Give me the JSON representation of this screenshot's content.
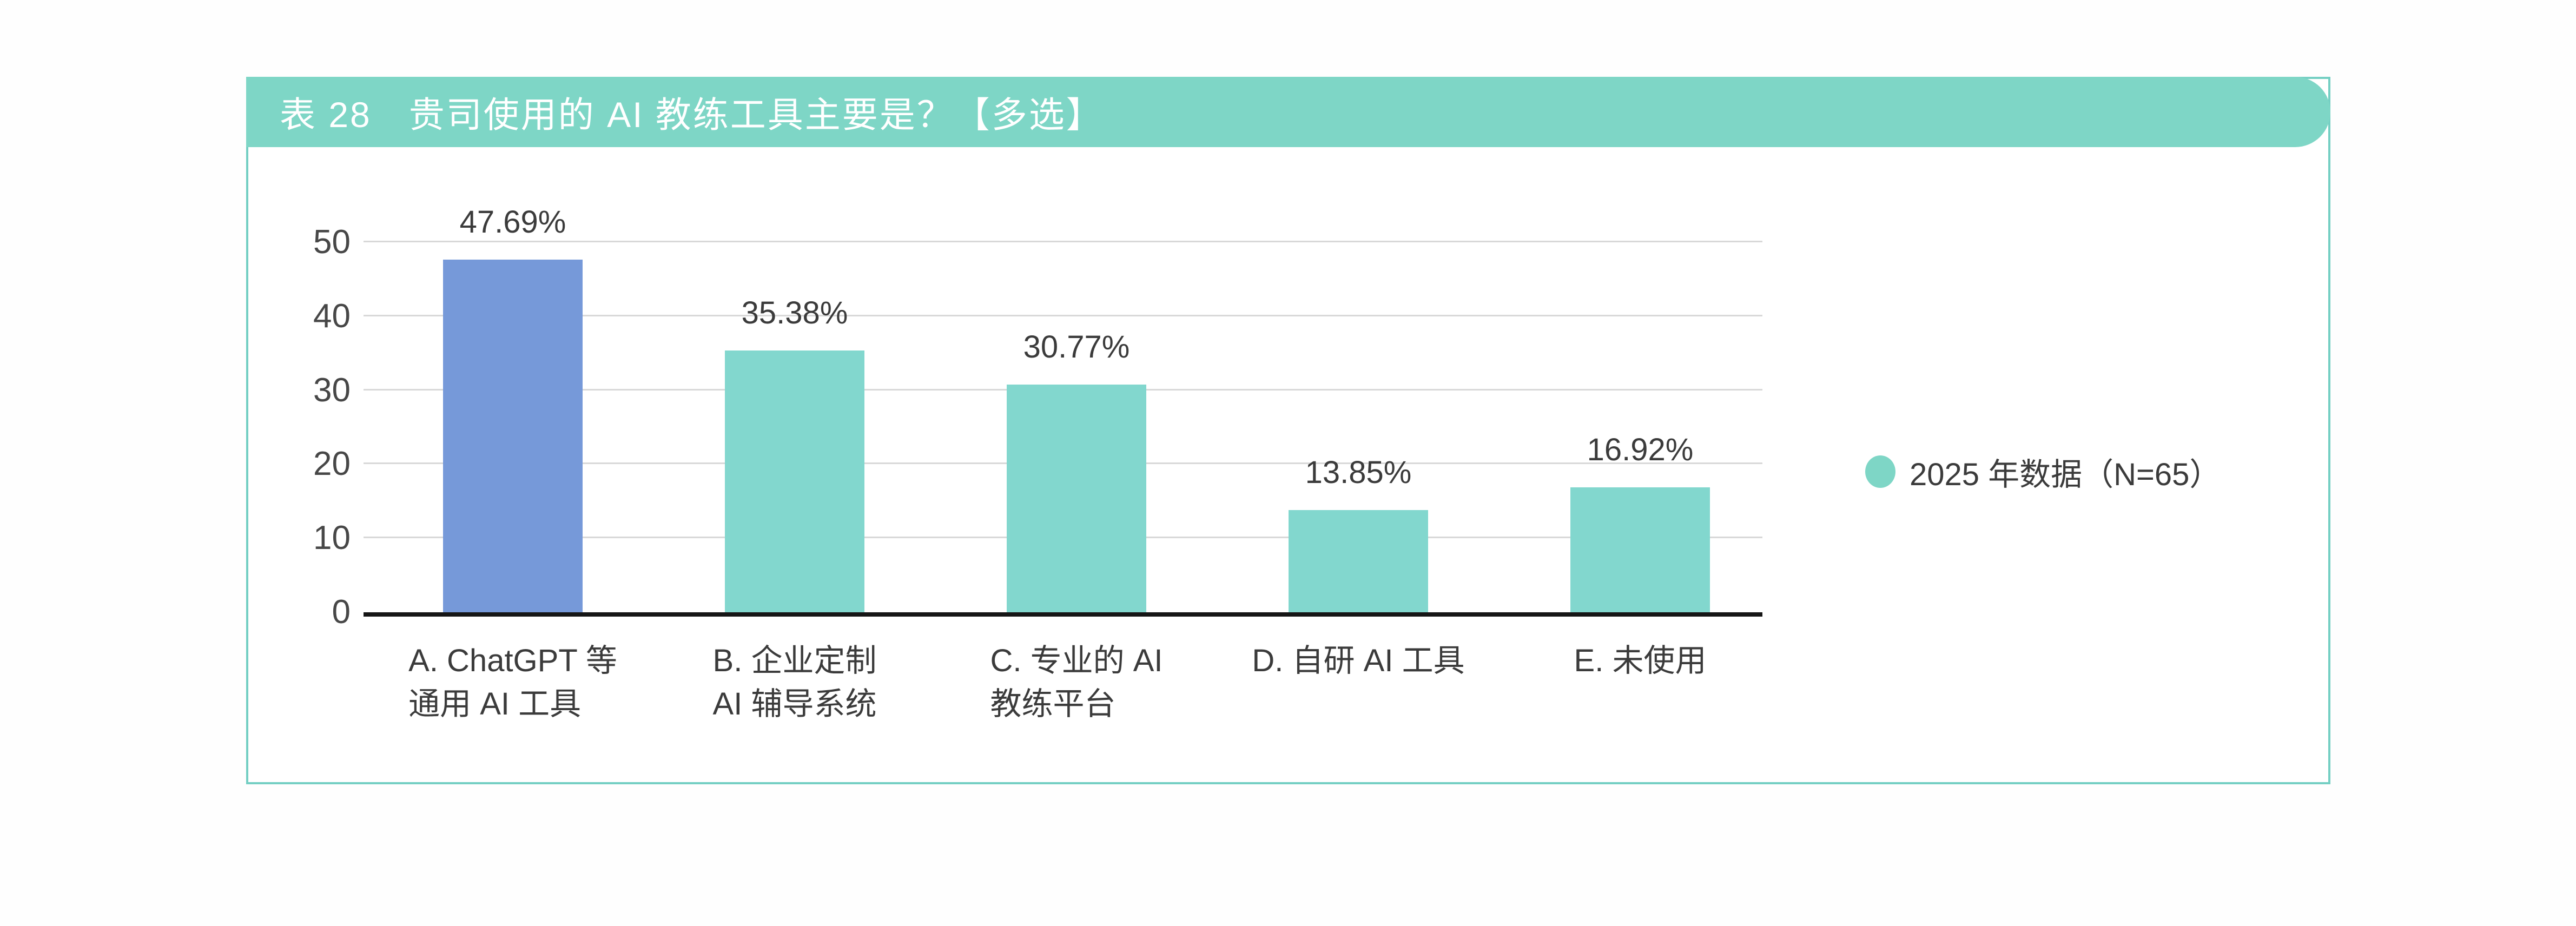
{
  "header": {
    "title": "表 28　贵司使用的 AI 教练工具主要是？【多选】"
  },
  "legend": {
    "label": "2025 年数据（N=65）"
  },
  "colors": {
    "header_bg": "#7ed6c6",
    "header_text": "#ffffff",
    "card_border": "#74cfc3",
    "accent_teal": "#82d7ce",
    "accent_blue": "#7699d9",
    "grid_line": "#d8d8d8",
    "axis_line": "#161616",
    "text": "#3b3b3b"
  },
  "chart_data": {
    "type": "bar",
    "title": "表 28 贵司使用的 AI 教练工具主要是？【多选】",
    "categories": [
      "A. ChatGPT 等\n通用 AI 工具",
      "B. 企业定制\nAI 辅导系统",
      "C. 专业的 AI\n教练平台",
      "D. 自研 AI 工具",
      "E. 未使用"
    ],
    "values": [
      47.69,
      35.38,
      30.77,
      13.85,
      16.92
    ],
    "value_labels": [
      "47.69%",
      "35.38%",
      "30.77%",
      "13.85%",
      "16.92%"
    ],
    "bar_colors": [
      "#7699d9",
      "#82d7ce",
      "#82d7ce",
      "#82d7ce",
      "#82d7ce"
    ],
    "yticks": [
      0,
      10,
      20,
      30,
      40,
      50
    ],
    "ylim": [
      0,
      50
    ],
    "xlabel": "",
    "ylabel": "",
    "grid": true,
    "legend_entries": [
      "2025 年数据（N=65）"
    ],
    "legend_position": "right"
  }
}
